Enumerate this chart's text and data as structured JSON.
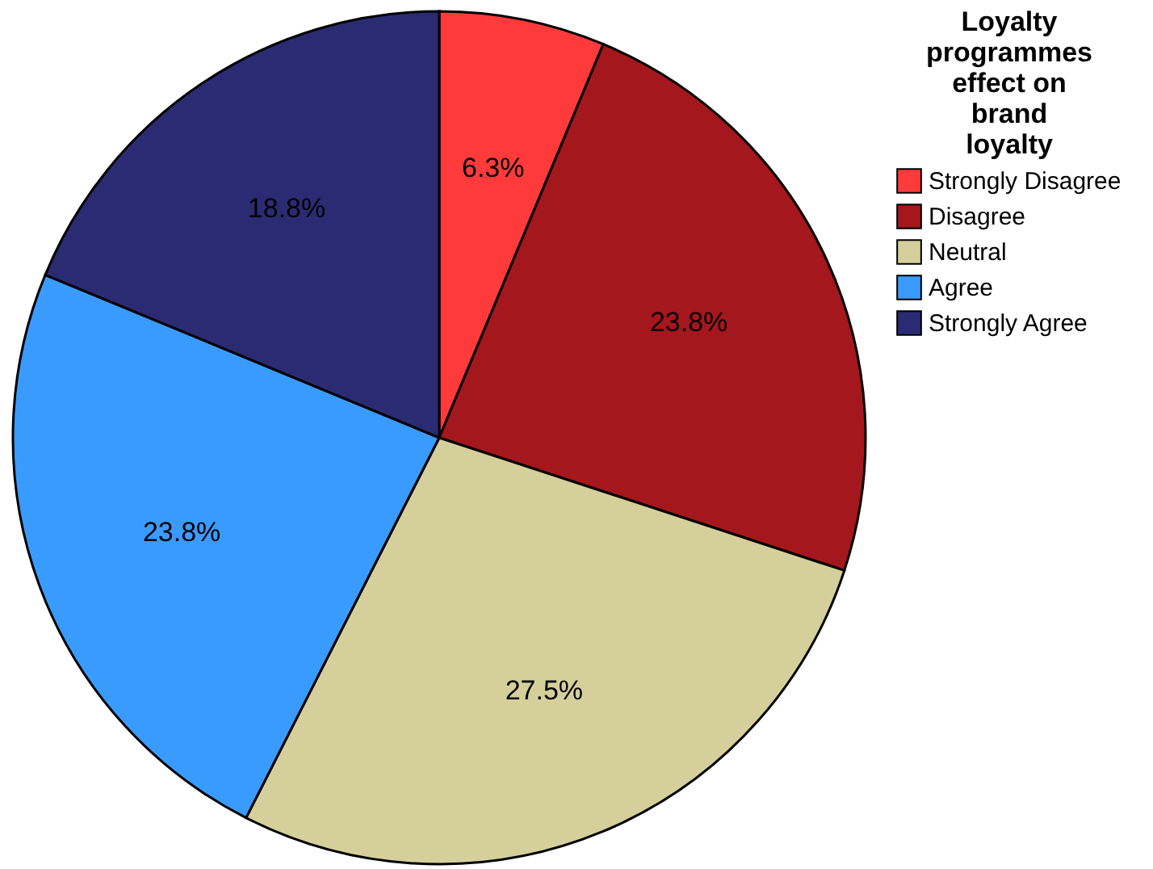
{
  "chart_data": {
    "type": "pie",
    "legend_title": "Loyalty programmes effect on brand loyalty",
    "legend": "right",
    "categories": [
      "Strongly Disagree",
      "Disagree",
      "Neutral",
      "Agree",
      "Strongly Agree"
    ],
    "values": [
      6.3,
      23.8,
      27.5,
      23.8,
      18.8
    ],
    "colors": [
      "#fe3a3b",
      "#a4171c",
      "#d5cf9b",
      "#3a9bfe",
      "#2b2b73"
    ],
    "value_labels": [
      "6.3%",
      "23.8%",
      "27.5%",
      "23.8%",
      "18.8%"
    ]
  }
}
